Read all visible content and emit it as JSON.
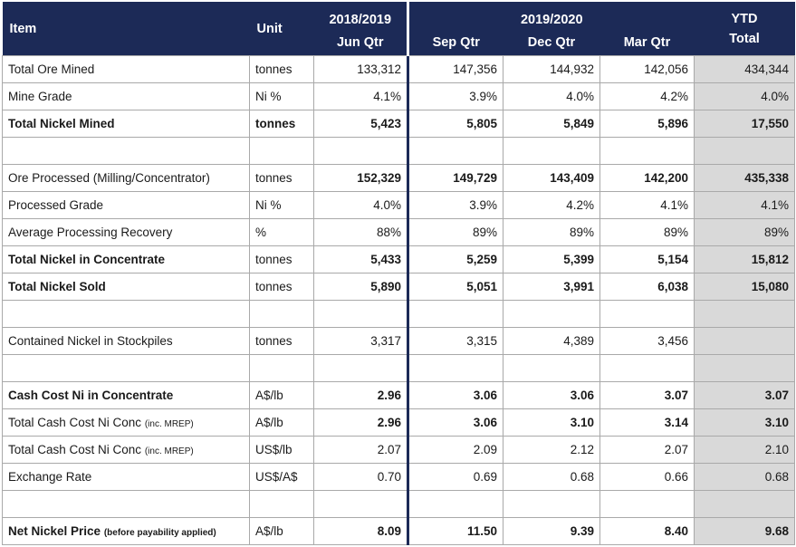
{
  "header": {
    "item": "Item",
    "unit": "Unit",
    "period1": "2018/2019",
    "period2": "2019/2020",
    "q1": "Jun Qtr",
    "q2": "Sep Qtr",
    "q3": "Dec Qtr",
    "q4": "Mar Qtr",
    "ytd_line1": "YTD",
    "ytd_line2": "Total"
  },
  "rows": [
    {
      "item": "Total Ore Mined",
      "unit": "tonnes",
      "v": [
        "133,312",
        "147,356",
        "144,932",
        "142,056",
        "434,344"
      ]
    },
    {
      "item": "Mine Grade",
      "unit": "Ni %",
      "v": [
        "4.1%",
        "3.9%",
        "4.0%",
        "4.2%",
        "4.0%"
      ]
    },
    {
      "item": "Total Nickel Mined",
      "unit": "tonnes",
      "v": [
        "5,423",
        "5,805",
        "5,849",
        "5,896",
        "17,550"
      ]
    },
    {
      "item": "Ore Processed (Milling/Concentrator)",
      "unit": "tonnes",
      "v": [
        "152,329",
        "149,729",
        "143,409",
        "142,200",
        "435,338"
      ]
    },
    {
      "item": "Processed Grade",
      "unit": "Ni %",
      "v": [
        "4.0%",
        "3.9%",
        "4.2%",
        "4.1%",
        "4.1%"
      ]
    },
    {
      "item": "Average Processing Recovery",
      "unit": "%",
      "v": [
        "88%",
        "89%",
        "89%",
        "89%",
        "89%"
      ]
    },
    {
      "item": "Total Nickel in Concentrate",
      "unit": "tonnes",
      "v": [
        "5,433",
        "5,259",
        "5,399",
        "5,154",
        "15,812"
      ]
    },
    {
      "item": "Total Nickel Sold",
      "unit": "tonnes",
      "v": [
        "5,890",
        "5,051",
        "3,991",
        "6,038",
        "15,080"
      ]
    },
    {
      "item": "Contained Nickel in Stockpiles",
      "unit": "tonnes",
      "v": [
        "3,317",
        "3,315",
        "4,389",
        "3,456",
        ""
      ]
    },
    {
      "item": "Cash Cost Ni in Concentrate",
      "unit": "A$/lb",
      "v": [
        "2.96",
        "3.06",
        "3.06",
        "3.07",
        "3.07"
      ]
    },
    {
      "item": "Total Cash Cost Ni Conc",
      "note": "(inc. MREP)",
      "unit": "A$/lb",
      "v": [
        "2.96",
        "3.06",
        "3.10",
        "3.14",
        "3.10"
      ]
    },
    {
      "item": "Total Cash Cost Ni Conc",
      "note": "(inc. MREP)",
      "unit": "US$/lb",
      "v": [
        "2.07",
        "2.09",
        "2.12",
        "2.07",
        "2.10"
      ]
    },
    {
      "item": "Exchange Rate",
      "unit": "US$/A$",
      "v": [
        "0.70",
        "0.69",
        "0.68",
        "0.66",
        "0.68"
      ]
    },
    {
      "item": "Net Nickel Price",
      "note": "(before payability applied)",
      "unit": "A$/lb",
      "v": [
        "8.09",
        "11.50",
        "9.39",
        "8.40",
        "9.68"
      ]
    }
  ]
}
